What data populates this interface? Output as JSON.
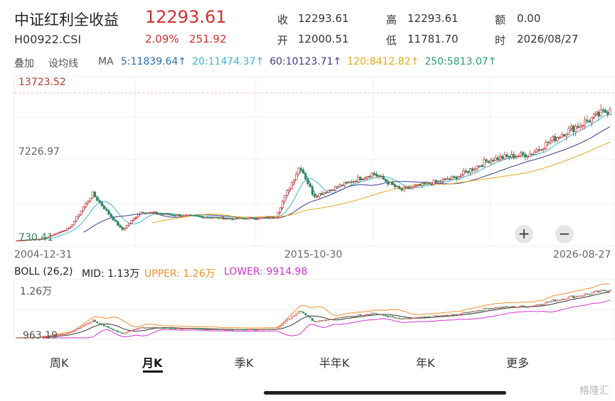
{
  "header": {
    "index_name": "中证红利全收益",
    "price": "12293.61",
    "code": "H00922.CSI",
    "change_pct": "2.09%",
    "change_abs": "251.92"
  },
  "quote": {
    "close_label": "收",
    "close_value": "12293.61",
    "high_label": "高",
    "high_value": "12293.61",
    "amount_label": "额",
    "amount_value": "0.00",
    "open_label": "开",
    "open_value": "12000.51",
    "low_label": "低",
    "low_value": "11781.70",
    "time_label": "时",
    "time_value": "2026/08/27"
  },
  "toolbar": {
    "overlay_label": "叠加",
    "drawline_label": "设均线",
    "ma_label": "MA",
    "ma_items": [
      {
        "text": "5:11839.64↑",
        "color": "#2a6fb0"
      },
      {
        "text": "20:11474.37↑",
        "color": "#41b5d9"
      },
      {
        "text": "60:10123.71↑",
        "color": "#3c3c8c"
      },
      {
        "text": "120:8412.82↑",
        "color": "#e6a817"
      },
      {
        "text": "250:5813.07↑",
        "color": "#2f9e6a"
      }
    ]
  },
  "main_chart": {
    "y_top_label": "13723.52",
    "y_mid_label": "7226.97",
    "y_bottom_label": "730.41",
    "x_labels": [
      "2004-12-31",
      "2015-10-30",
      "2026-08-27"
    ]
  },
  "boll": {
    "label": "BOLL (26,2)",
    "mid_label": "MID: 1.13万",
    "upper_label": "UPPER: 1.26万",
    "lower_label": "LOWER: 9914.98",
    "y_top_label": "1.26万",
    "y_bottom_label": "963.19"
  },
  "colors": {
    "up": "#d32f2f",
    "down": "#2e8b57",
    "boll_mid": "#333333",
    "boll_upper": "#f0902a",
    "boll_lower": "#d633d6"
  },
  "zoom": {
    "in_label": "+",
    "out_label": "−"
  },
  "tabs": [
    {
      "label": "周K",
      "active": false
    },
    {
      "label": "月K",
      "active": true
    },
    {
      "label": "季K",
      "active": false
    },
    {
      "label": "半年K",
      "active": false
    },
    {
      "label": "年K",
      "active": false
    },
    {
      "label": "更多",
      "active": false
    }
  ],
  "watermark": "格隆汇",
  "chart_data": {
    "type": "candlestick",
    "title": "中证红利全收益",
    "ylim": [
      730.41,
      13723.52
    ],
    "x_range": [
      "2004-12-31",
      "2026-08-27"
    ],
    "price_path": [
      [
        "2004-12-31",
        800
      ],
      [
        "2005-12",
        950
      ],
      [
        "2006-12",
        1900
      ],
      [
        "2007-10",
        4900
      ],
      [
        "2008-11",
        1700
      ],
      [
        "2009-07",
        3300
      ],
      [
        "2010-12",
        3000
      ],
      [
        "2012-12",
        2700
      ],
      [
        "2014-06",
        2800
      ],
      [
        "2015-05",
        7400
      ],
      [
        "2015-10-30",
        4700
      ],
      [
        "2018-01",
        6700
      ],
      [
        "2019-01",
        5200
      ],
      [
        "2021-01",
        6300
      ],
      [
        "2022-04",
        7900
      ],
      [
        "2023-10",
        8400
      ],
      [
        "2024-12",
        10200
      ],
      [
        "2026-08-27",
        12293.61
      ]
    ]
  }
}
